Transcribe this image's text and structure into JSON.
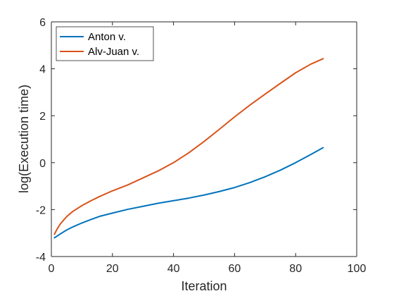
{
  "chart_data": {
    "type": "line",
    "xlabel": "Iteration",
    "ylabel": "log(Execution time)",
    "xlim": [
      0,
      100
    ],
    "ylim": [
      -4,
      6
    ],
    "xticks": [
      0,
      20,
      40,
      60,
      80,
      100
    ],
    "yticks": [
      -4,
      -2,
      0,
      2,
      4,
      6
    ],
    "grid": false,
    "legend_position": "top-left",
    "series": [
      {
        "name": "Anton v.",
        "color": "#0072BD",
        "x": [
          1,
          2,
          3,
          5,
          7,
          10,
          13,
          16,
          20,
          25,
          30,
          35,
          40,
          45,
          50,
          55,
          60,
          65,
          70,
          75,
          80,
          85,
          89
        ],
        "y": [
          -3.2,
          -3.12,
          -3.03,
          -2.87,
          -2.74,
          -2.57,
          -2.42,
          -2.28,
          -2.15,
          -1.99,
          -1.86,
          -1.73,
          -1.62,
          -1.51,
          -1.38,
          -1.23,
          -1.06,
          -0.85,
          -0.6,
          -0.32,
          0.0,
          0.35,
          0.64
        ]
      },
      {
        "name": "Alv-Juan v.",
        "color": "#D95319",
        "x": [
          1,
          2,
          3,
          5,
          7,
          10,
          13,
          16,
          20,
          25,
          30,
          35,
          40,
          45,
          50,
          55,
          60,
          65,
          70,
          75,
          80,
          85,
          89
        ],
        "y": [
          -3.05,
          -2.8,
          -2.6,
          -2.3,
          -2.08,
          -1.83,
          -1.62,
          -1.43,
          -1.2,
          -0.95,
          -0.65,
          -0.35,
          0.0,
          0.42,
          0.9,
          1.42,
          1.95,
          2.45,
          2.92,
          3.38,
          3.83,
          4.2,
          4.43
        ]
      }
    ]
  }
}
